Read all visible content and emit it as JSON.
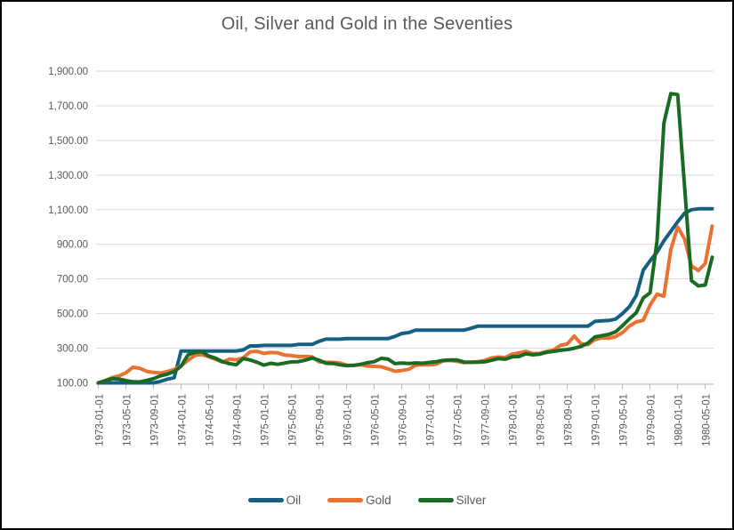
{
  "chart_data": {
    "type": "line",
    "title": "Oil, Silver and Gold in the Seventies",
    "xlabel": "",
    "ylabel": "",
    "ylim": [
      100,
      1900
    ],
    "grid": "horizontal",
    "legend_position": "bottom",
    "x_frequency": "monthly",
    "x_start": "1973-01-01",
    "x_end": "1980-06-01",
    "x_tick_labels": [
      "1973-01-01",
      "1973-05-01",
      "1973-09-01",
      "1974-01-01",
      "1974-05-01",
      "1974-09-01",
      "1975-01-01",
      "1975-05-01",
      "1975-09-01",
      "1976-01-01",
      "1976-05-01",
      "1976-09-01",
      "1977-01-01",
      "1977-05-01",
      "1977-09-01",
      "1978-01-01",
      "1978-05-01",
      "1978-09-01",
      "1979-01-01",
      "1979-05-01",
      "1979-09-01",
      "1980-01-01",
      "1980-05-01"
    ],
    "y_tick_values": [
      100,
      300,
      500,
      700,
      900,
      1100,
      1300,
      1500,
      1700,
      1900
    ],
    "y_tick_labels": [
      "100.00",
      "300.00",
      "500.00",
      "700.00",
      "900.00",
      "1,100.00",
      "1,300.00",
      "1,500.00",
      "1,700.00",
      "1,900.00"
    ],
    "series": [
      {
        "name": "Oil",
        "color": "#156082",
        "values": [
          100,
          100,
          100,
          100,
          100,
          100,
          100,
          100,
          100,
          108,
          121,
          130,
          284,
          284,
          284,
          284,
          284,
          284,
          284,
          284,
          284,
          290,
          313,
          313,
          316,
          316,
          316,
          316,
          316,
          322,
          322,
          322,
          340,
          352,
          352,
          352,
          355,
          355,
          355,
          355,
          355,
          355,
          355,
          368,
          385,
          390,
          404,
          404,
          404,
          404,
          404,
          404,
          404,
          404,
          415,
          427,
          427,
          427,
          427,
          427,
          427,
          427,
          427,
          427,
          427,
          427,
          427,
          427,
          427,
          427,
          427,
          427,
          455,
          458,
          460,
          468,
          500,
          540,
          605,
          750,
          805,
          855,
          920,
          975,
          1030,
          1080,
          1100,
          1105,
          1105,
          1105
        ]
      },
      {
        "name": "Gold",
        "color": "#E97132",
        "values": [
          100,
          113,
          130,
          140,
          158,
          190,
          184,
          166,
          160,
          157,
          165,
          177,
          198,
          230,
          258,
          264,
          250,
          236,
          219,
          237,
          233,
          244,
          279,
          282,
          270,
          275,
          273,
          260,
          257,
          252,
          253,
          250,
          221,
          219,
          218,
          214,
          202,
          200,
          204,
          197,
          195,
          193,
          181,
          167,
          171,
          178,
          201,
          205,
          204,
          208,
          227,
          229,
          225,
          216,
          220,
          222,
          229,
          244,
          249,
          246,
          266,
          273,
          282,
          269,
          270,
          282,
          289,
          316,
          325,
          370,
          325,
          320,
          350,
          360,
          358,
          367,
          390,
          428,
          452,
          461,
          550,
          612,
          600,
          870,
          1000,
          930,
          775,
          748,
          790,
          1005
        ]
      },
      {
        "name": "Silver",
        "color": "#196B24",
        "values": [
          100,
          112,
          124,
          122,
          113,
          106,
          105,
          114,
          124,
          140,
          150,
          165,
          196,
          261,
          276,
          280,
          255,
          242,
          222,
          211,
          204,
          240,
          232,
          219,
          202,
          213,
          207,
          214,
          221,
          222,
          231,
          243,
          231,
          213,
          212,
          204,
          199,
          201,
          207,
          216,
          222,
          241,
          237,
          211,
          214,
          212,
          215,
          213,
          218,
          222,
          230,
          232,
          232,
          220,
          218,
          219,
          221,
          230,
          240,
          236,
          250,
          252,
          268,
          262,
          266,
          276,
          282,
          288,
          292,
          300,
          310,
          330,
          365,
          372,
          380,
          395,
          430,
          470,
          505,
          590,
          620,
          920,
          1600,
          1770,
          1765,
          1230,
          690,
          660,
          665,
          825
        ]
      }
    ],
    "style": {
      "grid_color": "#D9D9D9",
      "axis_color": "#BFBFBF",
      "label_color": "#595959",
      "line_width": 4
    }
  }
}
